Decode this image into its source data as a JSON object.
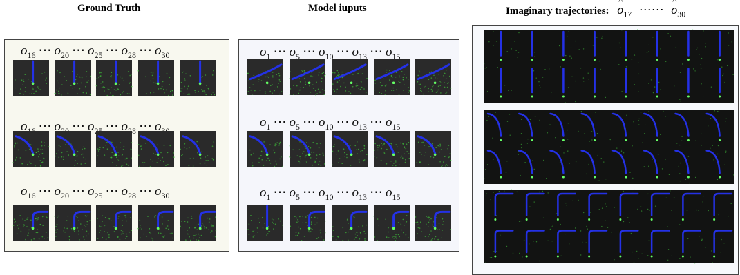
{
  "titles": {
    "ground_truth": "Ground Truth",
    "model_inputs": "Model iuputs",
    "imaginary_prefix": "Imaginary trajectories:",
    "imag_start_symbol": "o",
    "imag_start_sub": "17",
    "imag_dots": "⋯⋯",
    "imag_end_symbol": "o",
    "imag_end_sub": "30"
  },
  "ground_truth": {
    "row_labels": [
      [
        {
          "s": "o",
          "sub": "16"
        },
        {
          "dots": "⋯"
        },
        {
          "s": "o",
          "sub": "20"
        },
        {
          "dots": "⋯"
        },
        {
          "s": "o",
          "sub": "25"
        },
        {
          "dots": "⋯"
        },
        {
          "s": "o",
          "sub": "28"
        },
        {
          "dots": "⋯"
        },
        {
          "s": "o",
          "sub": "30"
        }
      ],
      [
        {
          "s": "o",
          "sub": "16"
        },
        {
          "dots": "⋯"
        },
        {
          "s": "o",
          "sub": "20"
        },
        {
          "dots": "⋯"
        },
        {
          "s": "o",
          "sub": "25"
        },
        {
          "dots": "⋯"
        },
        {
          "s": "o",
          "sub": "28"
        },
        {
          "dots": "⋯"
        },
        {
          "s": "o",
          "sub": "30"
        }
      ],
      [
        {
          "s": "o",
          "sub": "16"
        },
        {
          "dots": "⋯"
        },
        {
          "s": "o",
          "sub": "20"
        },
        {
          "dots": "⋯"
        },
        {
          "s": "o",
          "sub": "25"
        },
        {
          "dots": "⋯"
        },
        {
          "s": "o",
          "sub": "28"
        },
        {
          "dots": "⋯"
        },
        {
          "s": "o",
          "sub": "30"
        }
      ]
    ]
  },
  "model_inputs": {
    "row_labels": [
      [
        {
          "s": "o",
          "sub": "1"
        },
        {
          "dots": "⋯"
        },
        {
          "s": "o",
          "sub": "5"
        },
        {
          "dots": "⋯"
        },
        {
          "s": "o",
          "sub": "10"
        },
        {
          "dots": "⋯"
        },
        {
          "s": "o",
          "sub": "13"
        },
        {
          "dots": "⋯"
        },
        {
          "s": "o",
          "sub": "15"
        }
      ],
      [
        {
          "s": "o",
          "sub": "1"
        },
        {
          "dots": "⋯"
        },
        {
          "s": "o",
          "sub": "5"
        },
        {
          "dots": "⋯"
        },
        {
          "s": "o",
          "sub": "10"
        },
        {
          "dots": "⋯"
        },
        {
          "s": "o",
          "sub": "13"
        },
        {
          "dots": "⋯"
        },
        {
          "s": "o",
          "sub": "15"
        }
      ],
      [
        {
          "s": "o",
          "sub": "1"
        },
        {
          "dots": "⋯"
        },
        {
          "s": "o",
          "sub": "5"
        },
        {
          "dots": "⋯"
        },
        {
          "s": "o",
          "sub": "10"
        },
        {
          "dots": "⋯"
        },
        {
          "s": "o",
          "sub": "13"
        },
        {
          "dots": "⋯"
        },
        {
          "s": "o",
          "sub": "15"
        }
      ]
    ]
  },
  "colors": {
    "gt_panel_bg": "#f8f8ef",
    "mi_panel_bg": "#f5f6fb",
    "im_panel_bg": "#f7f9fc",
    "thumb_bg": "#2a2a2a",
    "strip_bg": "#121312",
    "trajectory": "#2431e6",
    "points": "#3fbf3a",
    "ego": "#66ff66"
  }
}
